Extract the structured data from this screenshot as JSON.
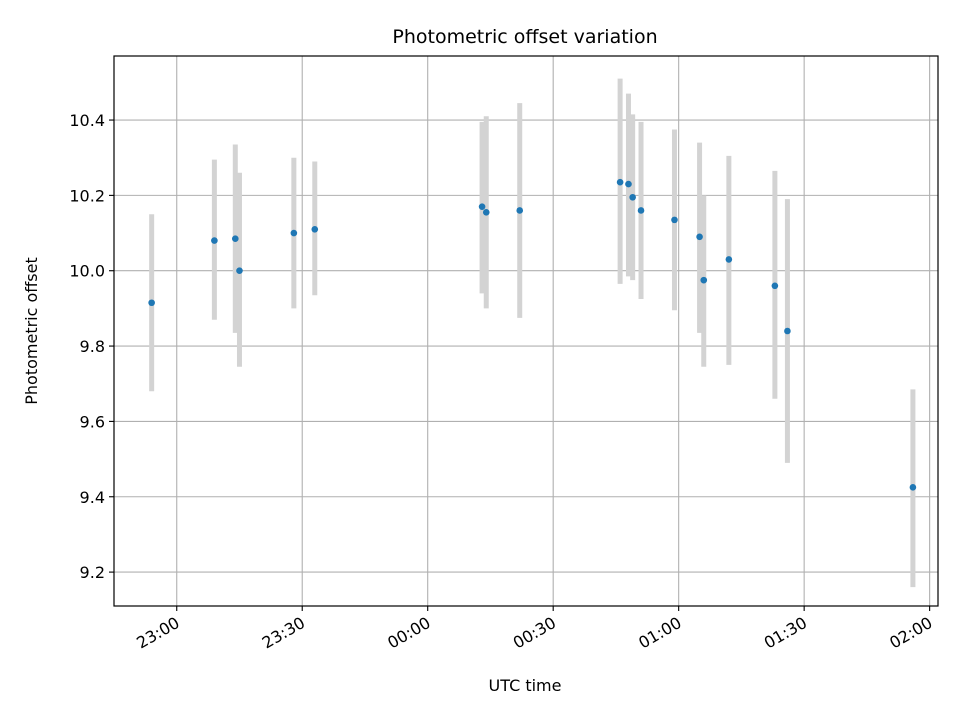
{
  "chart_data": {
    "type": "scatter",
    "title": "Photometric offset variation",
    "xlabel": "UTC time",
    "ylabel": "Photometric offset",
    "x_unit": "UTC time (HH:MM)",
    "xlim": [
      "22:45",
      "02:02"
    ],
    "ylim": [
      9.11,
      10.57
    ],
    "x_ticks": [
      "23:00",
      "23:30",
      "00:00",
      "00:30",
      "01:00",
      "01:30",
      "02:00"
    ],
    "y_ticks": [
      "9.2",
      "9.4",
      "9.6",
      "9.8",
      "10.0",
      "10.2",
      "10.4"
    ],
    "grid": true,
    "marker_color": "#1f77b4",
    "errorbar_color": "#d3d3d3",
    "points": [
      {
        "time": "22:54",
        "y": 9.915,
        "ylow": 9.68,
        "yhigh": 10.15
      },
      {
        "time": "23:09",
        "y": 10.08,
        "ylow": 9.87,
        "yhigh": 10.295
      },
      {
        "time": "23:14",
        "y": 10.085,
        "ylow": 9.835,
        "yhigh": 10.335
      },
      {
        "time": "23:15",
        "y": 10.0,
        "ylow": 9.745,
        "yhigh": 10.26
      },
      {
        "time": "23:28",
        "y": 10.1,
        "ylow": 9.9,
        "yhigh": 10.3
      },
      {
        "time": "23:33",
        "y": 10.11,
        "ylow": 9.935,
        "yhigh": 10.29
      },
      {
        "time": "00:13",
        "y": 10.17,
        "ylow": 9.94,
        "yhigh": 10.395
      },
      {
        "time": "00:14",
        "y": 10.155,
        "ylow": 9.9,
        "yhigh": 10.41
      },
      {
        "time": "00:22",
        "y": 10.16,
        "ylow": 9.875,
        "yhigh": 10.445
      },
      {
        "time": "00:46",
        "y": 10.235,
        "ylow": 9.965,
        "yhigh": 10.51
      },
      {
        "time": "00:48",
        "y": 10.23,
        "ylow": 9.985,
        "yhigh": 10.47
      },
      {
        "time": "00:49",
        "y": 10.195,
        "ylow": 9.975,
        "yhigh": 10.415
      },
      {
        "time": "00:51",
        "y": 10.16,
        "ylow": 9.925,
        "yhigh": 10.395
      },
      {
        "time": "00:59",
        "y": 10.135,
        "ylow": 9.895,
        "yhigh": 10.375
      },
      {
        "time": "01:05",
        "y": 10.09,
        "ylow": 9.835,
        "yhigh": 10.34
      },
      {
        "time": "01:06",
        "y": 9.975,
        "ylow": 9.745,
        "yhigh": 10.2
      },
      {
        "time": "01:12",
        "y": 10.03,
        "ylow": 9.75,
        "yhigh": 10.305
      },
      {
        "time": "01:23",
        "y": 9.96,
        "ylow": 9.66,
        "yhigh": 10.265
      },
      {
        "time": "01:26",
        "y": 9.84,
        "ylow": 9.49,
        "yhigh": 10.19
      },
      {
        "time": "01:56",
        "y": 9.425,
        "ylow": 9.16,
        "yhigh": 9.685
      }
    ]
  }
}
